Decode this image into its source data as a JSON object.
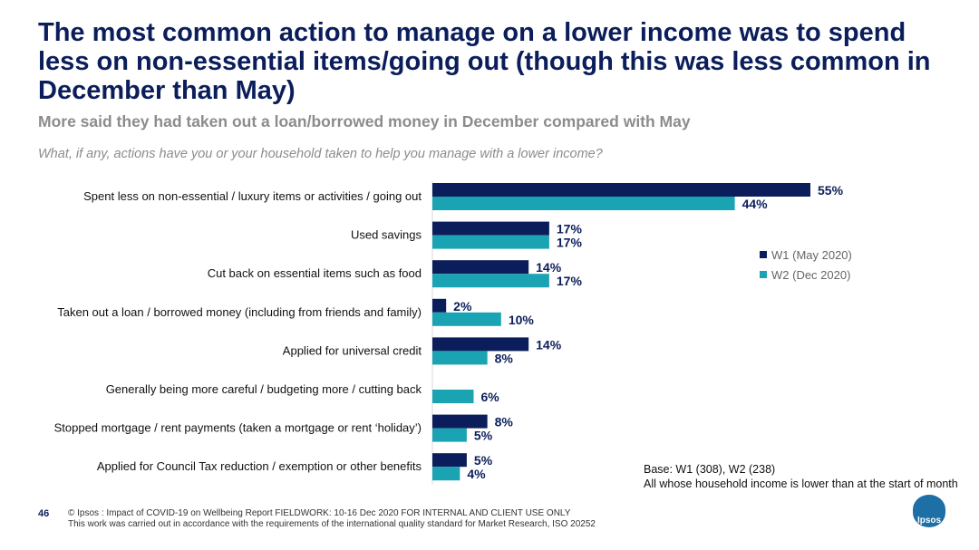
{
  "title": "The most common action to manage on a lower income was to spend less on non-essential items/going out (though this was less common in December than May)",
  "subtitle": "More said they had taken out a loan/borrowed money in December compared with May",
  "question": "What, if any, actions have you or your household taken to help you manage with a lower income?",
  "chart_data": {
    "type": "bar",
    "orientation": "horizontal",
    "categories": [
      "Spent less on non-essential / luxury items or activities / going out",
      "Used savings",
      "Cut back on essential items such as food",
      "Taken out a loan / borrowed money (including from friends and family)",
      "Applied for universal credit",
      "Generally being more careful / budgeting more / cutting back",
      "Stopped mortgage / rent payments (taken a mortgage or rent ‘holiday’)",
      "Applied for Council Tax reduction / exemption or other benefits"
    ],
    "series": [
      {
        "name": "W1 (May 2020)",
        "color": "#0b1e5b",
        "values": [
          55,
          17,
          14,
          2,
          14,
          null,
          8,
          5
        ]
      },
      {
        "name": "W2 (Dec 2020)",
        "color": "#1aa3b3",
        "values": [
          44,
          17,
          17,
          10,
          8,
          6,
          5,
          4
        ]
      }
    ],
    "xlim": [
      0,
      60
    ],
    "value_suffix": "%",
    "legend_position": "right",
    "grid": false
  },
  "base": {
    "line1": "Base: W1 (308), W2 (238)",
    "line2": "All whose household income is lower than at the start of month"
  },
  "footer": {
    "page_number": "46",
    "line1": "© Ipsos : Impact of COVID-19 on Wellbeing Report FIELDWORK: 10-16 Dec 2020 FOR INTERNAL AND CLIENT USE ONLY",
    "line2": "This work was carried out in accordance with the requirements of the international quality standard for Market Research, ISO 20252"
  },
  "logo_text": "Ipsos"
}
